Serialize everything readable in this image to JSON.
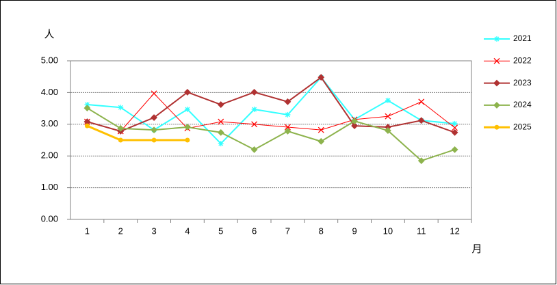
{
  "chart_data": {
    "type": "line",
    "y_label": "人",
    "x_label": "月",
    "categories": [
      "1",
      "2",
      "3",
      "4",
      "5",
      "6",
      "7",
      "8",
      "9",
      "10",
      "11",
      "12"
    ],
    "ylim": [
      0,
      5
    ],
    "yticks": [
      {
        "value": 0,
        "label": "0.00"
      },
      {
        "value": 1,
        "label": "1.00"
      },
      {
        "value": 2,
        "label": "2.00"
      },
      {
        "value": 3,
        "label": "3.00"
      },
      {
        "value": 4,
        "label": "4.00"
      },
      {
        "value": 5,
        "label": "5.00"
      }
    ],
    "grid": true,
    "legend": "right",
    "series": [
      {
        "name": "2021",
        "color": "#33ffff",
        "marker": "asterisk",
        "values": [
          3.62,
          3.53,
          2.82,
          3.47,
          2.39,
          3.47,
          3.3,
          4.48,
          3.15,
          3.75,
          3.12,
          3.02
        ]
      },
      {
        "name": "2022",
        "color": "#ff0000",
        "marker": "x",
        "values": [
          3.08,
          2.78,
          3.97,
          2.87,
          3.08,
          3.0,
          2.91,
          2.82,
          3.15,
          3.25,
          3.71,
          2.89
        ]
      },
      {
        "name": "2023",
        "color": "#b03232",
        "marker": "diamond",
        "values": [
          3.08,
          2.78,
          3.21,
          4.01,
          3.62,
          4.01,
          3.71,
          4.48,
          2.95,
          2.91,
          3.12,
          2.74
        ]
      },
      {
        "name": "2024",
        "color": "#8db34d",
        "marker": "diamond",
        "values": [
          3.51,
          2.87,
          2.82,
          2.91,
          2.74,
          2.2,
          2.78,
          2.46,
          3.1,
          2.8,
          1.85,
          2.2
        ]
      },
      {
        "name": "2025",
        "color": "#ffc000",
        "marker": "circle",
        "values": [
          2.95,
          2.5,
          2.5,
          2.5,
          null,
          null,
          null,
          null,
          null,
          null,
          null,
          null
        ]
      }
    ]
  }
}
